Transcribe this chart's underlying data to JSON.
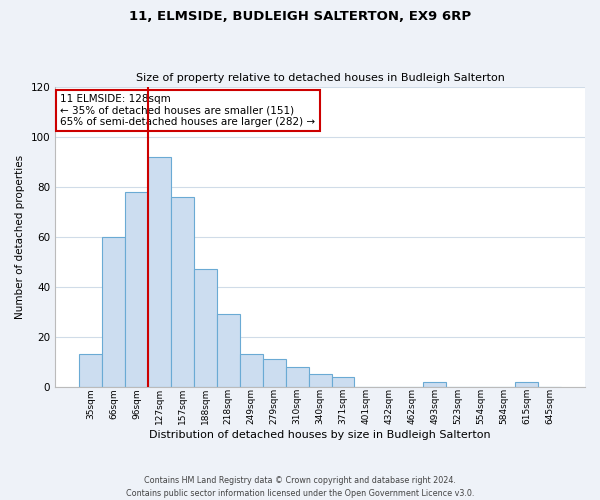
{
  "title": "11, ELMSIDE, BUDLEIGH SALTERTON, EX9 6RP",
  "subtitle": "Size of property relative to detached houses in Budleigh Salterton",
  "xlabel": "Distribution of detached houses by size in Budleigh Salterton",
  "ylabel": "Number of detached properties",
  "bar_labels": [
    "35sqm",
    "66sqm",
    "96sqm",
    "127sqm",
    "157sqm",
    "188sqm",
    "218sqm",
    "249sqm",
    "279sqm",
    "310sqm",
    "340sqm",
    "371sqm",
    "401sqm",
    "432sqm",
    "462sqm",
    "493sqm",
    "523sqm",
    "554sqm",
    "584sqm",
    "615sqm",
    "645sqm"
  ],
  "bar_values": [
    13,
    60,
    78,
    92,
    76,
    47,
    29,
    13,
    11,
    8,
    5,
    4,
    0,
    0,
    0,
    2,
    0,
    0,
    0,
    2,
    0
  ],
  "bar_color": "#ccddf0",
  "bar_edge_color": "#6aaad4",
  "ylim": [
    0,
    120
  ],
  "yticks": [
    0,
    20,
    40,
    60,
    80,
    100,
    120
  ],
  "property_line_index": 3,
  "property_line_color": "#cc0000",
  "annotation_title": "11 ELMSIDE: 128sqm",
  "annotation_line1": "← 35% of detached houses are smaller (151)",
  "annotation_line2": "65% of semi-detached houses are larger (282) →",
  "annotation_box_color": "#ffffff",
  "annotation_box_edge": "#cc0000",
  "footer_line1": "Contains HM Land Registry data © Crown copyright and database right 2024.",
  "footer_line2": "Contains public sector information licensed under the Open Government Licence v3.0.",
  "background_color": "#eef2f8",
  "plot_bg_color": "#ffffff",
  "grid_color": "#d0dce8"
}
